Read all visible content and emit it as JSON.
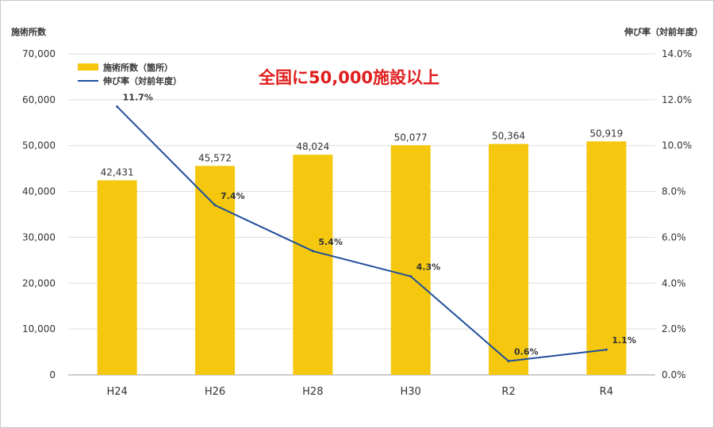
{
  "chart_data": {
    "type": "bar",
    "categories": [
      "H24",
      "H26",
      "H28",
      "H30",
      "R2",
      "R4"
    ],
    "series": [
      {
        "name": "施術所数（箇所）",
        "kind": "bar",
        "axis": "left",
        "values": [
          42431,
          45572,
          48024,
          50077,
          50364,
          50919
        ],
        "labels": [
          "42,431",
          "45,572",
          "48,024",
          "50,077",
          "50,364",
          "50,919"
        ],
        "color": "#f5c80f"
      },
      {
        "name": "伸び率（対前年度）",
        "kind": "line",
        "axis": "right",
        "values": [
          11.7,
          7.4,
          5.4,
          4.3,
          0.6,
          1.1
        ],
        "labels": [
          "11.7%",
          "7.4%",
          "5.4%",
          "4.3%",
          "0.6%",
          "1.1%"
        ],
        "color": "#1f4e9c"
      }
    ],
    "ylabel_left": "施術所数",
    "ylabel_right": "伸び率（対前年度）",
    "ylim_left": [
      0,
      70000
    ],
    "ylim_right": [
      0,
      14
    ],
    "yticks_left": [
      "0",
      "10,000",
      "20,000",
      "30,000",
      "40,000",
      "50,000",
      "60,000",
      "70,000"
    ],
    "yticks_right": [
      "0.0%",
      "2.0%",
      "4.0%",
      "6.0%",
      "8.0%",
      "10.0%",
      "12.0%",
      "14.0%"
    ],
    "annotation": "全国に50,000施設以上",
    "grid": true,
    "legend_position": "top-left"
  }
}
